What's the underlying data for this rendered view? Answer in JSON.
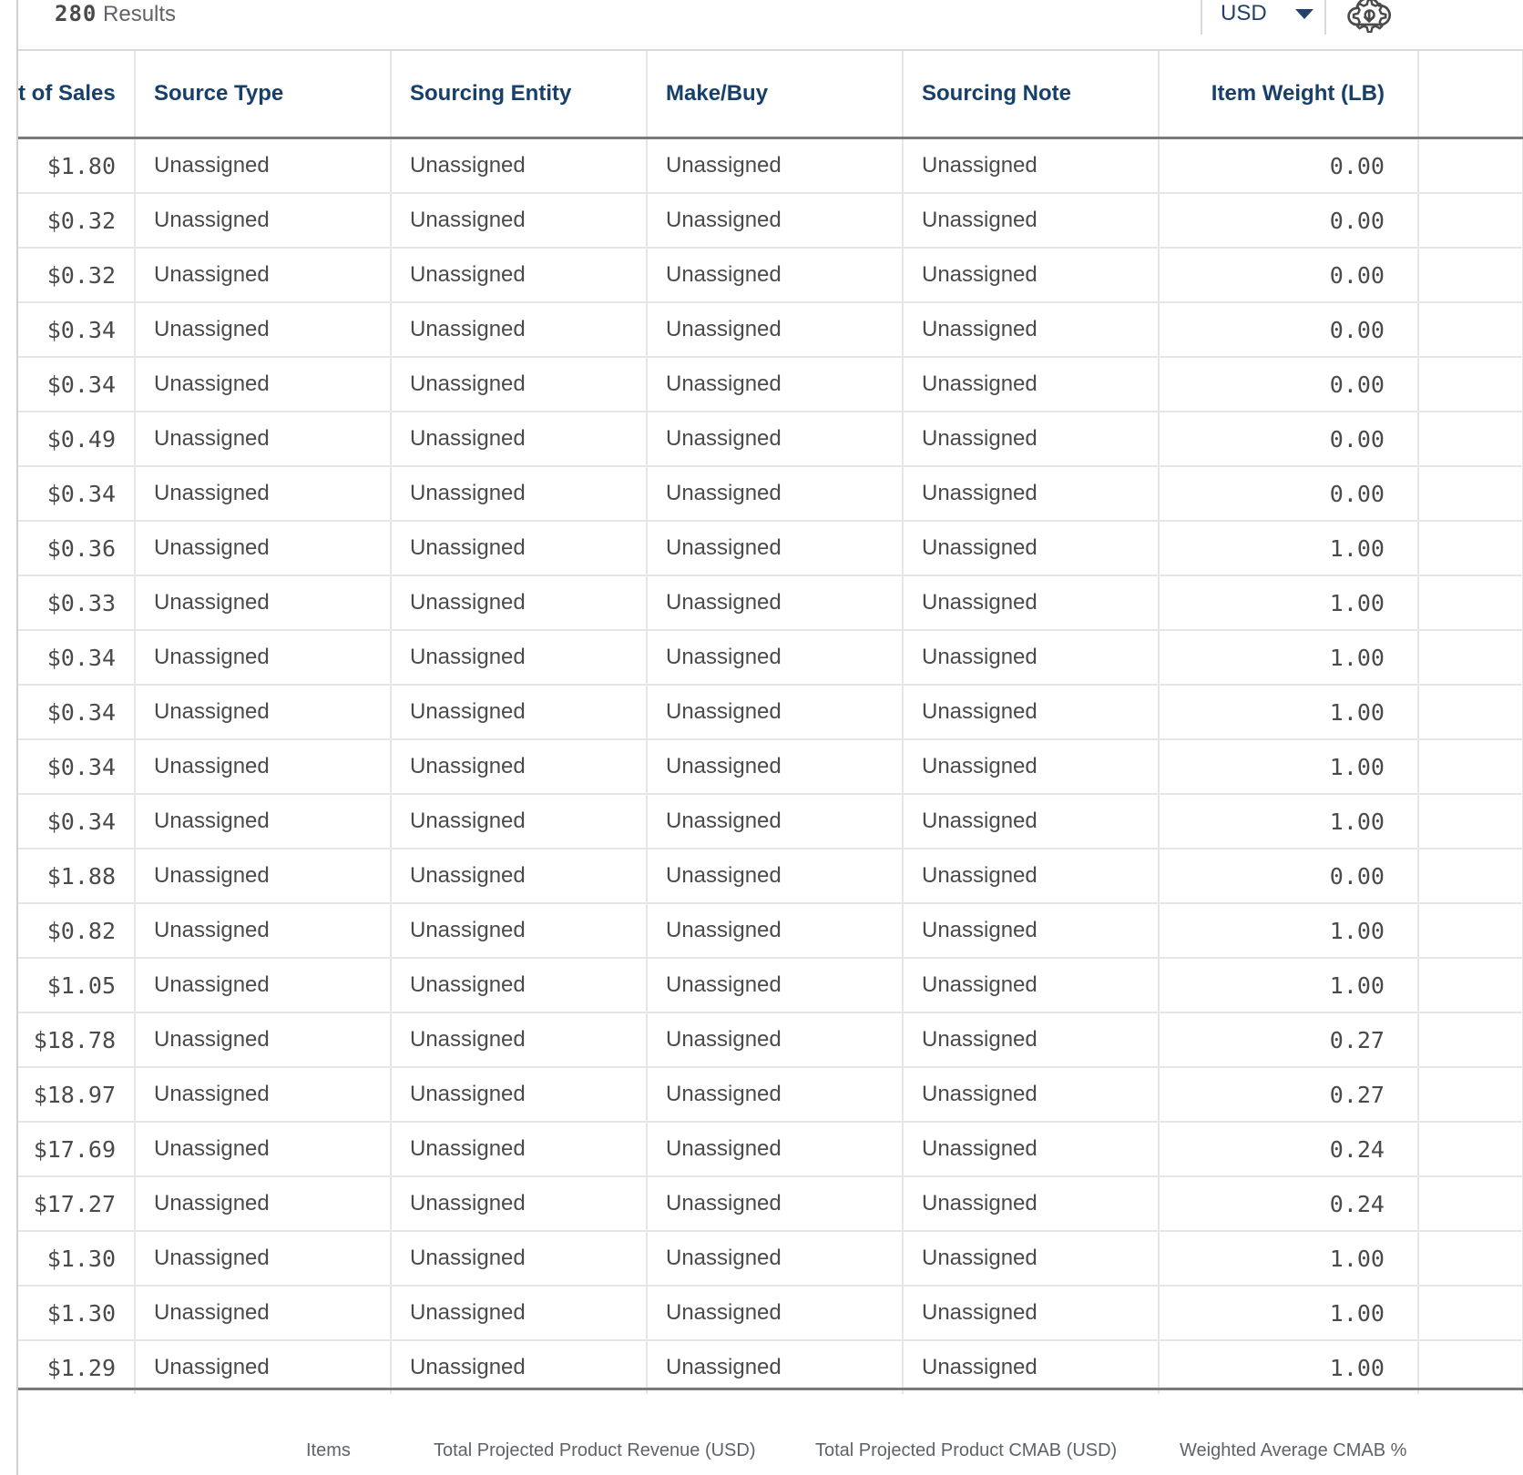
{
  "toolbar": {
    "result_count": "280",
    "results_label": "Results",
    "currency": "USD",
    "currency_caret_icon": "caret-down-icon",
    "settings_icon": "gear-icon",
    "download_icon": "cloud-download-icon"
  },
  "table": {
    "columns": [
      "t of Sales",
      "Source Type",
      "Sourcing Entity",
      "Make/Buy",
      "Sourcing Note",
      "Item Weight (LB)"
    ],
    "rows": [
      [
        "$1.80",
        "Unassigned",
        "Unassigned",
        "Unassigned",
        "Unassigned",
        "0.00"
      ],
      [
        "$0.32",
        "Unassigned",
        "Unassigned",
        "Unassigned",
        "Unassigned",
        "0.00"
      ],
      [
        "$0.32",
        "Unassigned",
        "Unassigned",
        "Unassigned",
        "Unassigned",
        "0.00"
      ],
      [
        "$0.34",
        "Unassigned",
        "Unassigned",
        "Unassigned",
        "Unassigned",
        "0.00"
      ],
      [
        "$0.34",
        "Unassigned",
        "Unassigned",
        "Unassigned",
        "Unassigned",
        "0.00"
      ],
      [
        "$0.49",
        "Unassigned",
        "Unassigned",
        "Unassigned",
        "Unassigned",
        "0.00"
      ],
      [
        "$0.34",
        "Unassigned",
        "Unassigned",
        "Unassigned",
        "Unassigned",
        "0.00"
      ],
      [
        "$0.36",
        "Unassigned",
        "Unassigned",
        "Unassigned",
        "Unassigned",
        "1.00"
      ],
      [
        "$0.33",
        "Unassigned",
        "Unassigned",
        "Unassigned",
        "Unassigned",
        "1.00"
      ],
      [
        "$0.34",
        "Unassigned",
        "Unassigned",
        "Unassigned",
        "Unassigned",
        "1.00"
      ],
      [
        "$0.34",
        "Unassigned",
        "Unassigned",
        "Unassigned",
        "Unassigned",
        "1.00"
      ],
      [
        "$0.34",
        "Unassigned",
        "Unassigned",
        "Unassigned",
        "Unassigned",
        "1.00"
      ],
      [
        "$0.34",
        "Unassigned",
        "Unassigned",
        "Unassigned",
        "Unassigned",
        "1.00"
      ],
      [
        "$1.88",
        "Unassigned",
        "Unassigned",
        "Unassigned",
        "Unassigned",
        "0.00"
      ],
      [
        "$0.82",
        "Unassigned",
        "Unassigned",
        "Unassigned",
        "Unassigned",
        "1.00"
      ],
      [
        "$1.05",
        "Unassigned",
        "Unassigned",
        "Unassigned",
        "Unassigned",
        "1.00"
      ],
      [
        "$18.78",
        "Unassigned",
        "Unassigned",
        "Unassigned",
        "Unassigned",
        "0.27"
      ],
      [
        "$18.97",
        "Unassigned",
        "Unassigned",
        "Unassigned",
        "Unassigned",
        "0.27"
      ],
      [
        "$17.69",
        "Unassigned",
        "Unassigned",
        "Unassigned",
        "Unassigned",
        "0.24"
      ],
      [
        "$17.27",
        "Unassigned",
        "Unassigned",
        "Unassigned",
        "Unassigned",
        "0.24"
      ],
      [
        "$1.30",
        "Unassigned",
        "Unassigned",
        "Unassigned",
        "Unassigned",
        "1.00"
      ],
      [
        "$1.30",
        "Unassigned",
        "Unassigned",
        "Unassigned",
        "Unassigned",
        "1.00"
      ],
      [
        "$1.29",
        "Unassigned",
        "Unassigned",
        "Unassigned",
        "Unassigned",
        "1.00"
      ]
    ]
  },
  "summary": {
    "items_label": "Items",
    "revenue_label": "Total Projected Product Revenue (USD)",
    "cmab_label": "Total Projected Product CMAB (USD)",
    "weighted_label": "Weighted Average CMAB %"
  }
}
